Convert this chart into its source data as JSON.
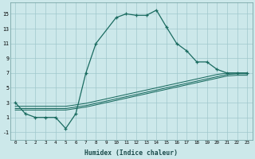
{
  "xlabel": "Humidex (Indice chaleur)",
  "background_color": "#cce8ea",
  "grid_color": "#a0c8cc",
  "line_color": "#1a6b60",
  "xlim": [
    -0.5,
    23.5
  ],
  "ylim": [
    -2,
    16.5
  ],
  "xticks": [
    0,
    1,
    2,
    3,
    4,
    5,
    6,
    7,
    8,
    9,
    10,
    11,
    12,
    13,
    14,
    15,
    16,
    17,
    18,
    19,
    20,
    21,
    22,
    23
  ],
  "yticks": [
    -1,
    1,
    3,
    5,
    7,
    9,
    11,
    13,
    15
  ],
  "main_x": [
    0,
    1,
    2,
    3,
    4,
    5,
    6,
    7,
    8,
    10,
    11,
    12,
    13,
    14,
    15,
    16,
    17,
    18,
    19,
    20,
    21,
    22,
    23
  ],
  "main_y": [
    3,
    1.5,
    1,
    1,
    1,
    -0.5,
    1.5,
    7,
    11,
    14.5,
    15.0,
    14.8,
    14.8,
    15.5,
    13.2,
    11.0,
    10.0,
    8.5,
    8.5,
    7.5,
    7.0,
    7.0,
    7.0
  ],
  "trend1_x": [
    0,
    1,
    2,
    3,
    4,
    5,
    6,
    7,
    8,
    9,
    10,
    11,
    12,
    13,
    14,
    15,
    16,
    17,
    18,
    19,
    20,
    21,
    22,
    23
  ],
  "trend1_y": [
    2.5,
    2.5,
    2.5,
    2.5,
    2.5,
    2.5,
    2.7,
    2.9,
    3.2,
    3.5,
    3.8,
    4.1,
    4.4,
    4.7,
    5.0,
    5.3,
    5.6,
    5.9,
    6.2,
    6.5,
    6.8,
    7.0,
    7.0,
    7.0
  ],
  "trend2_x": [
    0,
    1,
    2,
    3,
    4,
    5,
    6,
    7,
    8,
    9,
    10,
    11,
    12,
    13,
    14,
    15,
    16,
    17,
    18,
    19,
    20,
    21,
    22,
    23
  ],
  "trend2_y": [
    2.2,
    2.2,
    2.2,
    2.2,
    2.2,
    2.2,
    2.4,
    2.6,
    2.9,
    3.2,
    3.5,
    3.8,
    4.1,
    4.4,
    4.7,
    5.0,
    5.3,
    5.6,
    5.9,
    6.2,
    6.5,
    6.8,
    6.9,
    6.9
  ],
  "trend3_x": [
    0,
    1,
    2,
    3,
    4,
    5,
    6,
    7,
    8,
    9,
    10,
    11,
    12,
    13,
    14,
    15,
    16,
    17,
    18,
    19,
    20,
    21,
    22,
    23
  ],
  "trend3_y": [
    2.0,
    2.0,
    2.0,
    2.0,
    2.0,
    2.0,
    2.2,
    2.4,
    2.7,
    3.0,
    3.3,
    3.6,
    3.9,
    4.2,
    4.5,
    4.8,
    5.1,
    5.4,
    5.7,
    6.0,
    6.3,
    6.6,
    6.7,
    6.7
  ]
}
